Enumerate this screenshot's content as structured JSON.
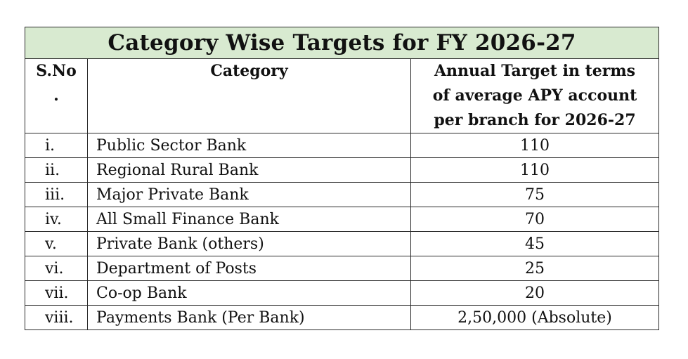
{
  "title": "Category Wise Targets for FY 2026-27",
  "headers": {
    "sno_line1": "S.No",
    "sno_line2": ".",
    "category": "Category",
    "target_line1": "Annual Target in terms",
    "target_line2": "of average APY account",
    "target_line3": "per branch for 2026-27"
  },
  "rows": [
    {
      "sno": "i.",
      "category": "Public Sector Bank",
      "target": "110"
    },
    {
      "sno": "ii.",
      "category": "Regional Rural Bank",
      "target": "110"
    },
    {
      "sno": "iii.",
      "category": "Major Private Bank",
      "target": "75"
    },
    {
      "sno": "iv.",
      "category": "All Small Finance Bank",
      "target": "70"
    },
    {
      "sno": "v.",
      "category": "Private Bank (others)",
      "target": "45"
    },
    {
      "sno": "vi.",
      "category": "Department of Posts",
      "target": "25"
    },
    {
      "sno": "vii.",
      "category": "Co-op Bank",
      "target": "20"
    },
    {
      "sno": "viii.",
      "category": "Payments Bank (Per Bank)",
      "target": "2,50,000 (Absolute)"
    }
  ],
  "colors": {
    "title_background": "#d8ead0",
    "border": "#2b2b2b"
  }
}
